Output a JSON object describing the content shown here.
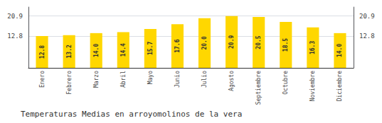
{
  "chart_data": {
    "type": "bar",
    "title": "Temperaturas Medias en arroyomolinos de la vera",
    "categories": [
      "Enero",
      "Febrero",
      "Marzo",
      "Abril",
      "Mayo",
      "Junio",
      "Julio",
      "Agosto",
      "Septiembre",
      "Octubre",
      "Noviembre",
      "Diciembre"
    ],
    "values": [
      12.8,
      13.2,
      14.0,
      14.4,
      15.7,
      17.6,
      20.0,
      20.9,
      20.5,
      18.5,
      16.3,
      14.0
    ],
    "value_labels": [
      "12.8",
      "13.2",
      "14.0",
      "14.4",
      "15.7",
      "17.6",
      "20.0",
      "20.9",
      "20.5",
      "18.5",
      "16.3",
      "14.0"
    ],
    "color": "#FFD700",
    "ylim": [
      0,
      24.5
    ],
    "yticks": [
      12.8,
      20.9
    ],
    "y2lim": [
      0,
      24.5
    ],
    "y2ticks": [
      12.8,
      20.9
    ],
    "grid": true,
    "data_labels": true
  }
}
